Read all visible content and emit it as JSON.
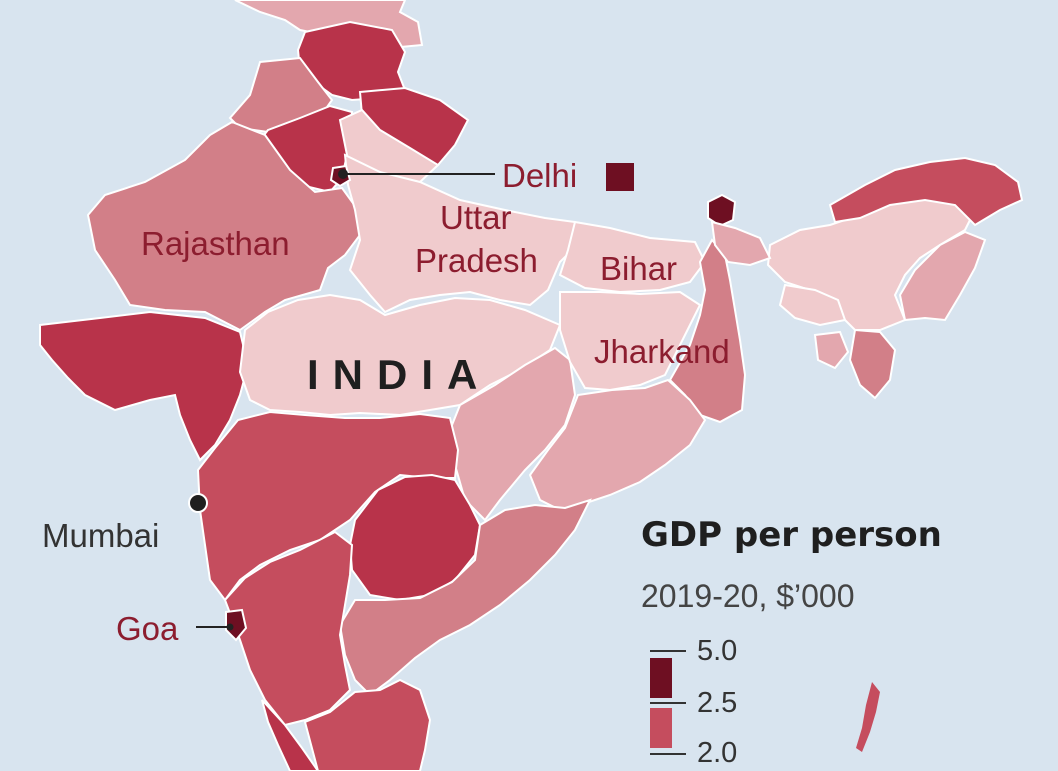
{
  "map": {
    "country_label": "INDIA",
    "colors": {
      "water": "#d8e4ef",
      "border": "#ffffff",
      "darkest": "#6e0f22",
      "dark": "#b8334a",
      "mid_dark": "#c54d5e",
      "mid": "#d27f88",
      "light": "#e3a7ae",
      "lightest": "#f0cbcd"
    },
    "state_labels": {
      "rajasthan": "Rajasthan",
      "uttar": "Uttar",
      "pradesh": "Pradesh",
      "bihar": "Bihar",
      "jharkand": "Jharkand",
      "delhi": "Delhi",
      "goa": "Goa"
    },
    "city_labels": {
      "mumbai": "Mumbai"
    }
  },
  "legend": {
    "title": "GDP per person",
    "subtitle": "2019-20, $’000",
    "breaks": [
      "5.0",
      "2.5",
      "2.0"
    ]
  }
}
